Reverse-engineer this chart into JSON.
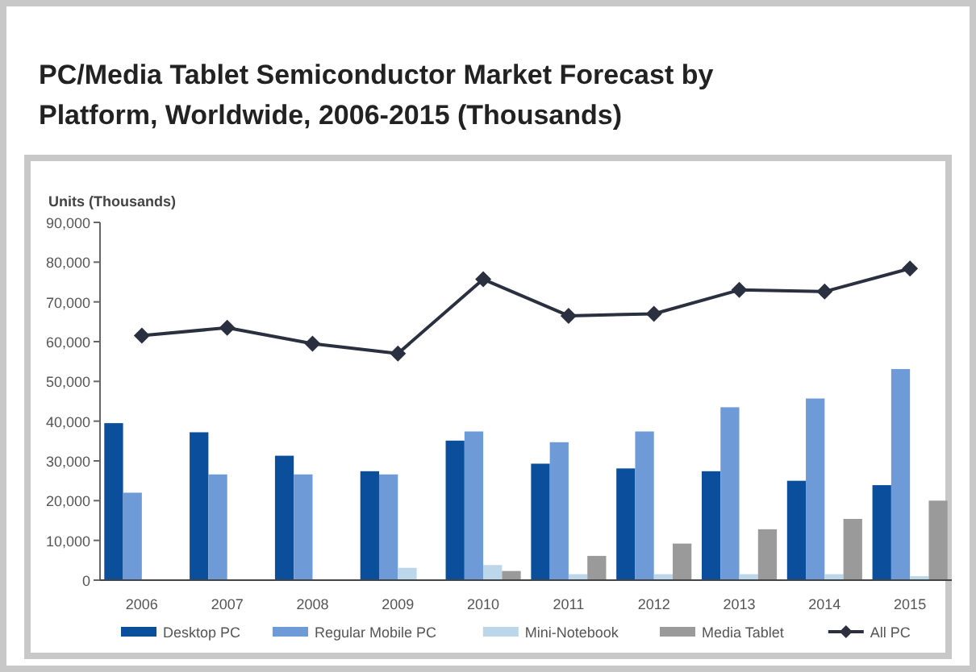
{
  "chart_data": {
    "type": "bar",
    "title": "PC/Media Tablet Semiconductor Market Forecast by Platform, Worldwide, 2006-2015 (Thousands)",
    "ylabel": "Units (Thousands)",
    "categories": [
      "2006",
      "2007",
      "2008",
      "2009",
      "2010",
      "2011",
      "2012",
      "2013",
      "2014",
      "2015"
    ],
    "series": [
      {
        "name": "Desktop PC",
        "color": "#0b4f9c",
        "values": [
          39500,
          37200,
          31300,
          27400,
          35100,
          29300,
          28100,
          27400,
          25000,
          23900
        ]
      },
      {
        "name": "Regular Mobile PC",
        "color": "#6f9ad8",
        "values": [
          22000,
          26600,
          26600,
          26600,
          37400,
          34700,
          37400,
          43500,
          45700,
          53100
        ]
      },
      {
        "name": "Mini-Notebook",
        "color": "#bcd7ea",
        "values": [
          0,
          0,
          null,
          3100,
          3800,
          1500,
          1500,
          1500,
          1500,
          1000
        ]
      },
      {
        "name": "Media Tablet",
        "color": "#9a9a9a",
        "values": [
          0,
          0,
          0,
          0,
          2300,
          6100,
          9200,
          12800,
          15400,
          20000
        ]
      },
      {
        "name": "All PC",
        "color": "#2b3040",
        "type": "line",
        "marker": "diamond",
        "values": [
          61500,
          63500,
          59500,
          57000,
          75700,
          66500,
          67000,
          73000,
          72600,
          78400
        ]
      }
    ],
    "ylim": [
      0,
      90000
    ],
    "yticks": [
      {
        "value": 0,
        "label": "0"
      },
      {
        "value": 10000,
        "label": "10,000"
      },
      {
        "value": 20000,
        "label": "20,000"
      },
      {
        "value": 30000,
        "label": "30,000"
      },
      {
        "value": 40000,
        "label": "40,000"
      },
      {
        "value": 50000,
        "label": "50,000"
      },
      {
        "value": 60000,
        "label": "60,000"
      },
      {
        "value": 70000,
        "label": "70,000"
      },
      {
        "value": 80000,
        "label": "80,000"
      },
      {
        "value": 90000,
        "label": "90,000"
      }
    ],
    "legend": "bottom",
    "grid": false
  }
}
